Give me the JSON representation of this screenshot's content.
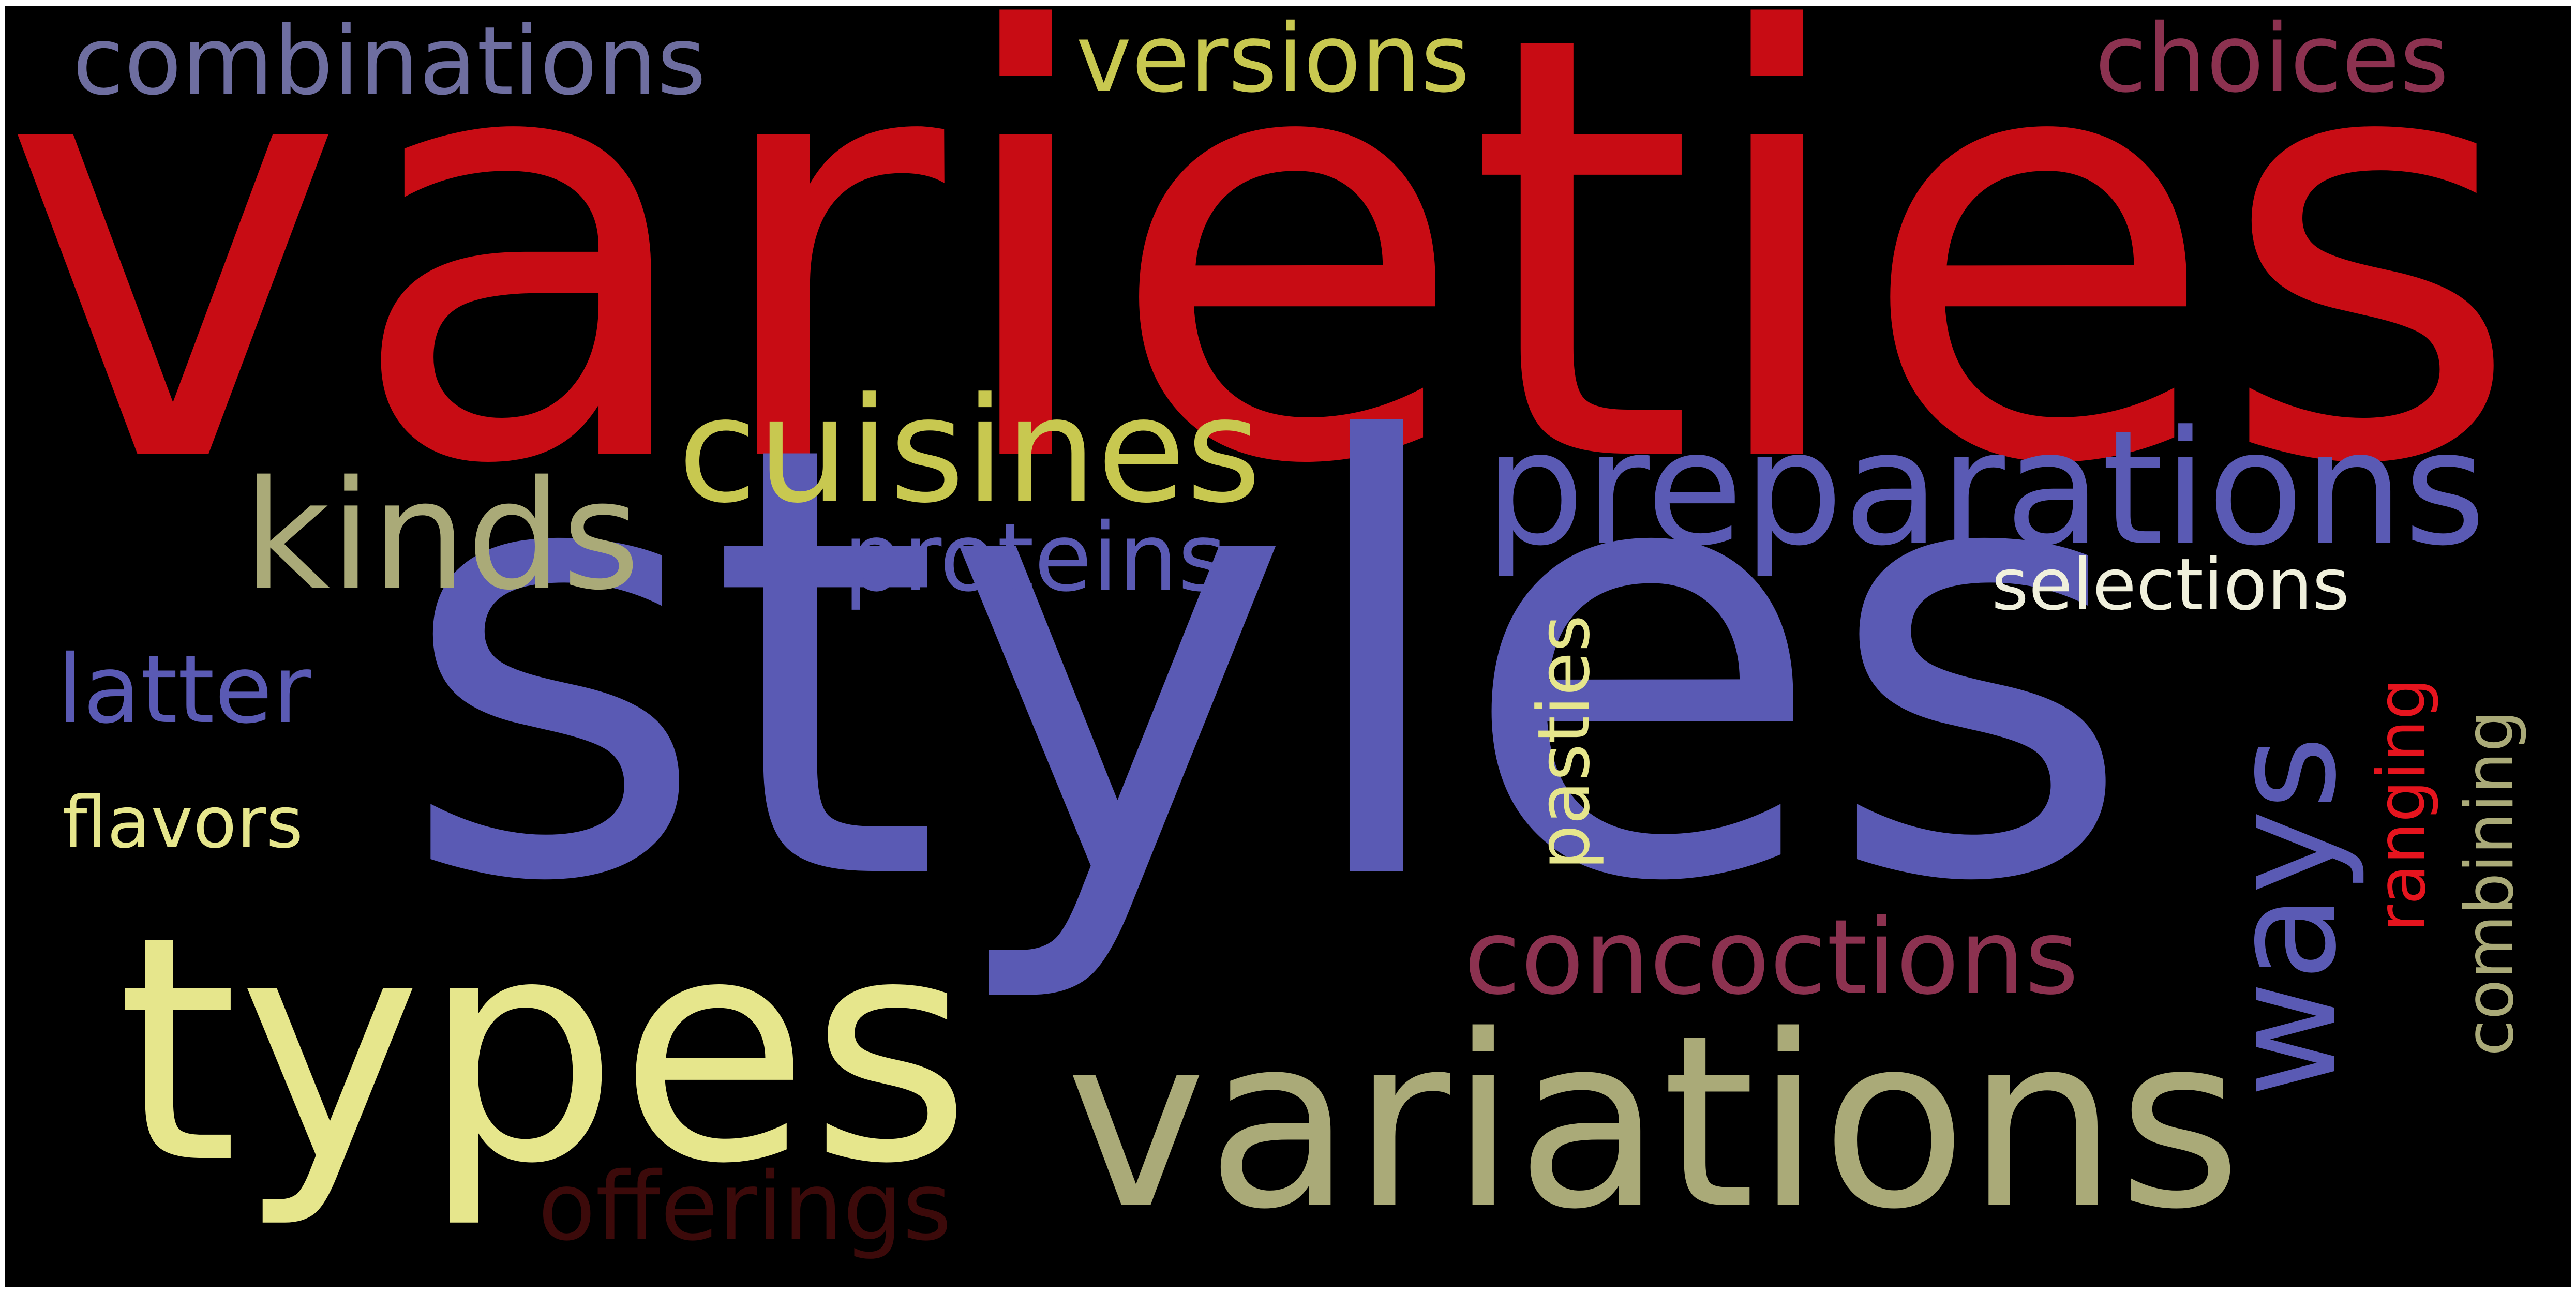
{
  "words": [
    {
      "text": "varieties",
      "color": "#c80c14"
    },
    {
      "text": "styles",
      "color": "#5a5ab4"
    },
    {
      "text": "variations",
      "color": "#aaaa78"
    },
    {
      "text": "types",
      "color": "#e6e68c"
    },
    {
      "text": "preparations",
      "color": "#5a5ab4"
    },
    {
      "text": "cuisines",
      "color": "#c8c850"
    },
    {
      "text": "kinds",
      "color": "#aaaa78"
    },
    {
      "text": "concoctions",
      "color": "#8c3250"
    },
    {
      "text": "ways",
      "color": "#5a5ab4"
    },
    {
      "text": "combinations",
      "color": "#6e6ea0"
    },
    {
      "text": "versions",
      "color": "#c8c850"
    },
    {
      "text": "choices",
      "color": "#8c3250"
    },
    {
      "text": "proteins",
      "color": "#5a5ab4"
    },
    {
      "text": "latter",
      "color": "#5a5ab4"
    },
    {
      "text": "flavors",
      "color": "#e6e68c"
    },
    {
      "text": "offerings",
      "color": "#3c0a0a"
    },
    {
      "text": "selections",
      "color": "#f0f0dc"
    },
    {
      "text": "pasties",
      "color": "#e6e68c"
    },
    {
      "text": "ranging",
      "color": "#e6141e"
    },
    {
      "text": "combining",
      "color": "#aaaa78"
    }
  ]
}
